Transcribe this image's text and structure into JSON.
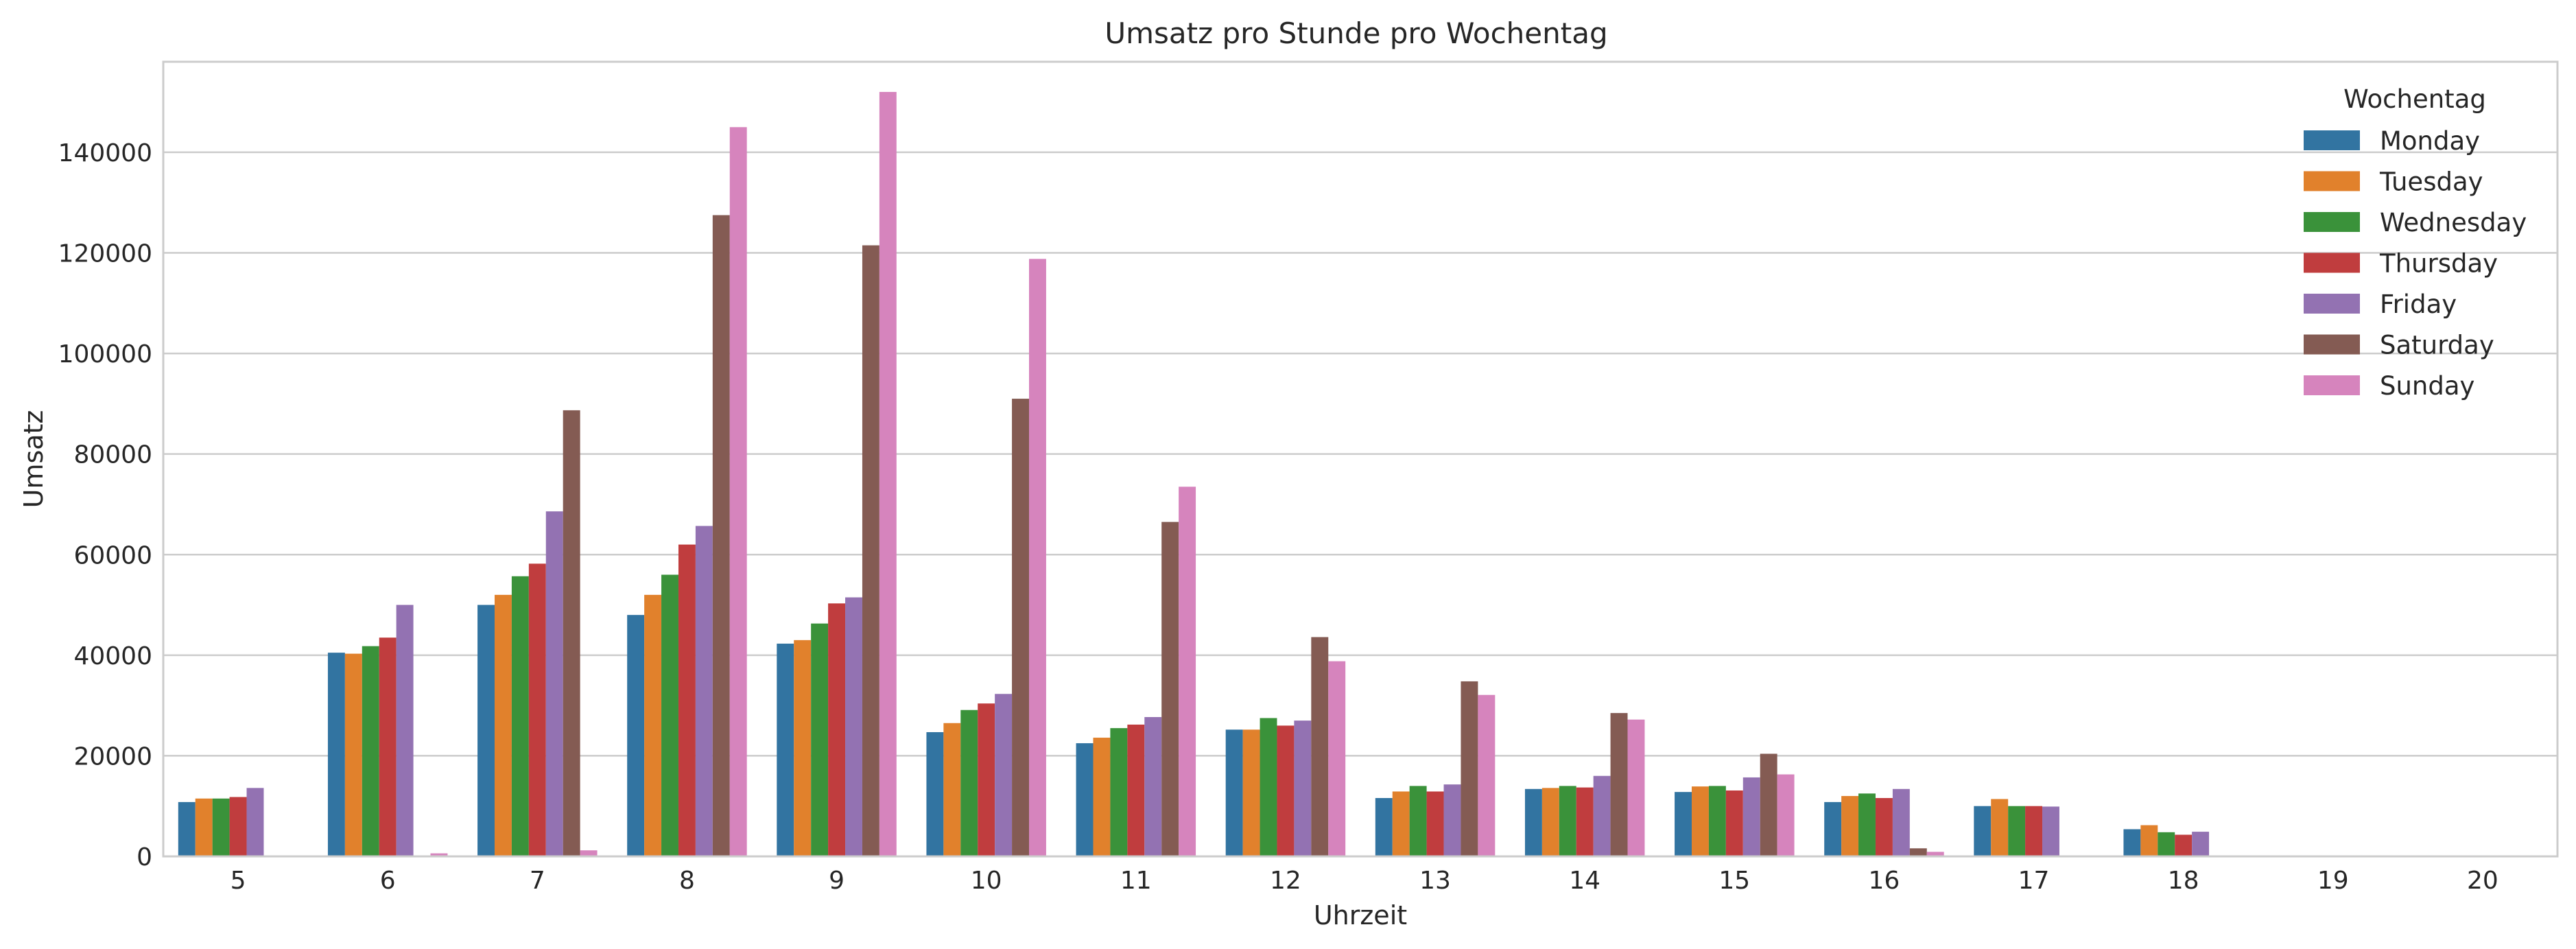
{
  "chart_data": {
    "type": "bar",
    "title": "Umsatz pro Stunde pro Wochentag",
    "xlabel": "Uhrzeit",
    "ylabel": "Umsatz",
    "ylim": [
      0,
      158000
    ],
    "yticks": [
      "0",
      "20000",
      "40000",
      "60000",
      "80000",
      "100000",
      "120000",
      "140000"
    ],
    "ytick_values": [
      0,
      20000,
      40000,
      60000,
      80000,
      100000,
      120000,
      140000
    ],
    "grid": "horizontal",
    "legend": {
      "title": "Wochentag",
      "placement": "top-right"
    },
    "categories": [
      "5",
      "6",
      "7",
      "8",
      "9",
      "10",
      "11",
      "12",
      "13",
      "14",
      "15",
      "16",
      "17",
      "18",
      "19",
      "20"
    ],
    "series": [
      {
        "name": "Monday",
        "color": "#3274a1",
        "values": [
          10800,
          40500,
          50000,
          48000,
          42300,
          24700,
          22500,
          25200,
          11600,
          13400,
          12800,
          10800,
          10000,
          5400,
          0,
          0
        ]
      },
      {
        "name": "Tuesday",
        "color": "#e1812c",
        "values": [
          11500,
          40300,
          52000,
          52000,
          43000,
          26500,
          23600,
          25200,
          12900,
          13600,
          13900,
          12000,
          11400,
          6200,
          0,
          0
        ]
      },
      {
        "name": "Wednesday",
        "color": "#3a923a",
        "values": [
          11500,
          41800,
          55700,
          56000,
          46300,
          29100,
          25500,
          27500,
          14000,
          14000,
          14000,
          12500,
          10000,
          4800,
          0,
          0
        ]
      },
      {
        "name": "Thursday",
        "color": "#c03d3e",
        "values": [
          11800,
          43500,
          58200,
          62000,
          50300,
          30400,
          26200,
          26000,
          12900,
          13700,
          13100,
          11600,
          10000,
          4300,
          0,
          0
        ]
      },
      {
        "name": "Friday",
        "color": "#9372b2",
        "values": [
          13600,
          50000,
          68600,
          65700,
          51500,
          32300,
          27700,
          27000,
          14300,
          16000,
          15700,
          13400,
          9900,
          4900,
          0,
          0
        ]
      },
      {
        "name": "Saturday",
        "color": "#845b53",
        "values": [
          0,
          0,
          88700,
          127500,
          121500,
          91000,
          66500,
          43600,
          34800,
          28500,
          20400,
          1600,
          0,
          0,
          0,
          0
        ]
      },
      {
        "name": "Sunday",
        "color": "#d684bd",
        "values": [
          0,
          600,
          1200,
          145000,
          152000,
          118800,
          73500,
          38800,
          32100,
          27200,
          16300,
          900,
          0,
          0,
          0,
          0
        ]
      }
    ]
  }
}
